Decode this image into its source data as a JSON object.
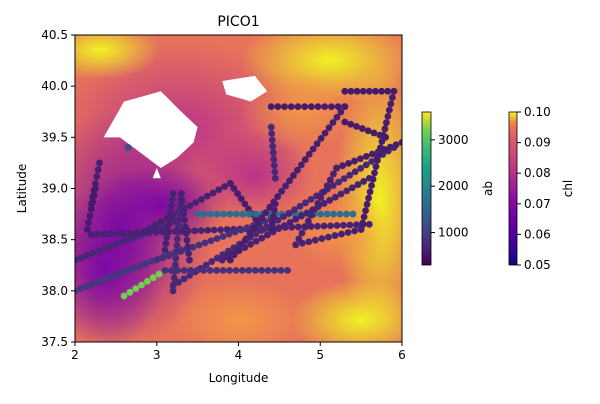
{
  "chart_data": {
    "type": "scatter",
    "title": "PICO1",
    "xlabel": "Longitude",
    "ylabel": "Latitude",
    "xlim": [
      2,
      6
    ],
    "ylim": [
      37.5,
      40.5
    ],
    "xticks": [
      "2",
      "3",
      "4",
      "5",
      "6"
    ],
    "yticks": [
      "37.5",
      "38.0",
      "38.5",
      "39.0",
      "39.5",
      "40.0",
      "40.5"
    ],
    "grid": false,
    "background": {
      "variable": "chl",
      "colormap": "plasma",
      "colorbar_label": "chl",
      "range": [
        0.05,
        0.1
      ],
      "ticks": [
        "0.05",
        "0.06",
        "0.07",
        "0.08",
        "0.09",
        "0.10"
      ],
      "land_mask": "white",
      "land_polygons": [
        [
          [
            2.35,
            39.5
          ],
          [
            2.6,
            39.85
          ],
          [
            3.05,
            39.95
          ],
          [
            3.3,
            39.75
          ],
          [
            3.5,
            39.6
          ],
          [
            3.45,
            39.45
          ],
          [
            3.25,
            39.3
          ],
          [
            3.05,
            39.2
          ],
          [
            2.8,
            39.35
          ],
          [
            2.55,
            39.5
          ]
        ],
        [
          [
            3.8,
            40.05
          ],
          [
            4.2,
            40.1
          ],
          [
            4.35,
            39.95
          ],
          [
            4.15,
            39.85
          ],
          [
            3.85,
            39.92
          ]
        ],
        [
          [
            2.95,
            39.1
          ],
          [
            3.0,
            39.2
          ],
          [
            3.05,
            39.1
          ]
        ]
      ]
    },
    "points": {
      "variable": "ab",
      "colormap": "viridis",
      "colorbar_label": "ab",
      "range": [
        300,
        3600
      ],
      "ticks": [
        "1000",
        "2000",
        "3000"
      ],
      "tracks": [
        {
          "from": [
            2.7,
            38.52
          ],
          "to": [
            3.9,
            39.05
          ],
          "value": 650
        },
        {
          "from": [
            3.9,
            39.05
          ],
          "to": [
            4.3,
            38.6
          ],
          "value": 600
        },
        {
          "from": [
            2.0,
            38.0
          ],
          "to": [
            3.3,
            38.4
          ],
          "value": 900
        },
        {
          "from": [
            2.6,
            37.95
          ],
          "to": [
            3.1,
            38.2
          ],
          "value": 3200
        },
        {
          "from": [
            2.0,
            38.3
          ],
          "to": [
            3.3,
            38.7
          ],
          "value": 700
        },
        {
          "from": [
            2.2,
            38.85
          ],
          "to": [
            2.3,
            39.25
          ],
          "value": 600
        },
        {
          "from": [
            2.15,
            38.6
          ],
          "to": [
            2.25,
            39.0
          ],
          "value": 550
        },
        {
          "from": [
            2.2,
            38.55
          ],
          "to": [
            5.6,
            38.65
          ],
          "value": 650
        },
        {
          "from": [
            3.2,
            38.0
          ],
          "to": [
            3.3,
            38.95
          ],
          "value": 700
        },
        {
          "from": [
            3.1,
            38.4
          ],
          "to": [
            3.2,
            38.95
          ],
          "value": 650
        },
        {
          "from": [
            3.0,
            38.3
          ],
          "to": [
            4.4,
            38.7
          ],
          "value": 800
        },
        {
          "from": [
            3.5,
            38.75
          ],
          "to": [
            5.4,
            38.75
          ],
          "value": 1600
        },
        {
          "from": [
            3.2,
            38.05
          ],
          "to": [
            5.9,
            39.4
          ],
          "value": 700
        },
        {
          "from": [
            3.8,
            38.3
          ],
          "to": [
            5.6,
            39.1
          ],
          "value": 650
        },
        {
          "from": [
            4.4,
            39.8
          ],
          "to": [
            5.3,
            39.8
          ],
          "value": 550
        },
        {
          "from": [
            5.3,
            39.8
          ],
          "to": [
            3.9,
            38.3
          ],
          "value": 600
        },
        {
          "from": [
            5.3,
            39.95
          ],
          "to": [
            5.9,
            39.95
          ],
          "value": 550
        },
        {
          "from": [
            5.9,
            39.95
          ],
          "to": [
            5.5,
            38.6
          ],
          "value": 600
        },
        {
          "from": [
            5.5,
            38.6
          ],
          "to": [
            4.7,
            38.45
          ],
          "value": 650
        },
        {
          "from": [
            4.7,
            38.45
          ],
          "to": [
            5.2,
            39.2
          ],
          "value": 650
        },
        {
          "from": [
            5.2,
            39.2
          ],
          "to": [
            6.0,
            39.45
          ],
          "value": 600
        },
        {
          "from": [
            5.3,
            39.65
          ],
          "to": [
            5.8,
            39.5
          ],
          "value": 580
        },
        {
          "from": [
            4.4,
            39.6
          ],
          "to": [
            4.45,
            39.1
          ],
          "value": 700
        },
        {
          "from": [
            3.3,
            38.95
          ],
          "to": [
            3.4,
            38.3
          ],
          "value": 650
        },
        {
          "from": [
            3.1,
            38.2
          ],
          "to": [
            4.6,
            38.2
          ],
          "value": 800
        },
        {
          "from": [
            4.4,
            38.6
          ],
          "to": [
            4.45,
            38.85
          ],
          "value": 600
        },
        {
          "from": [
            2.65,
            39.4
          ],
          "to": [
            2.65,
            39.4
          ],
          "value": 1200
        }
      ]
    }
  }
}
